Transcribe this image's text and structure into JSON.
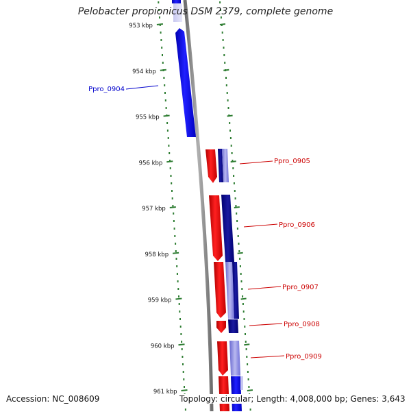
{
  "title": "Pelobacter propionicus DSM 2379, complete genome",
  "accession": "Accession: NC_008609",
  "summary": "Topology: circular; Length: 4,008,000 bp; Genes: 3,643",
  "ticks": [
    "953 kbp",
    "954 kbp",
    "955 kbp",
    "956 kbp",
    "957 kbp",
    "958 kbp",
    "959 kbp",
    "960 kbp",
    "961 kbp"
  ],
  "gene_labels": [
    {
      "name": "Ppro_0904",
      "color": "#0000cc"
    },
    {
      "name": "Ppro_0905",
      "color": "#cc0000"
    },
    {
      "name": "Ppro_0906",
      "color": "#cc0000"
    },
    {
      "name": "Ppro_0907",
      "color": "#cc0000"
    },
    {
      "name": "Ppro_0908",
      "color": "#cc0000"
    },
    {
      "name": "Ppro_0909",
      "color": "#cc0000"
    }
  ],
  "colors": {
    "plus_strand": "#ff0000",
    "minus_strand": "#0000ff",
    "backbone": "#888888",
    "tick": "#2e7d32"
  }
}
